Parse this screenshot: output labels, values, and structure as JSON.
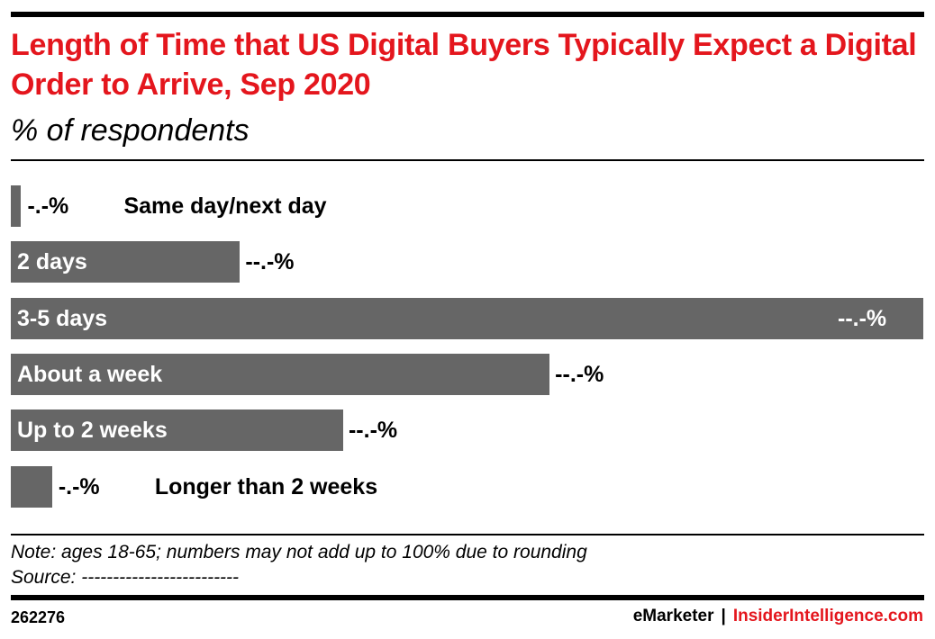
{
  "chart_data": {
    "type": "bar",
    "orientation": "horizontal",
    "title": "Length of Time that US Digital Buyers Typically Expect a Digital Order to Arrive, Sep 2020",
    "subtitle": "% of respondents",
    "categories": [
      "Same day/next day",
      "2 days",
      "3-5 days",
      "About a week",
      "Up to 2 weeks",
      "Longer than 2 weeks"
    ],
    "values": [
      0.5,
      11.1,
      44.2,
      26.1,
      16.1,
      2.0
    ],
    "value_labels": [
      "-.-%",
      "--.-%",
      "--.-%",
      "--.-%",
      "--.-%",
      "-.-%"
    ],
    "xlim": [
      0,
      44.2
    ],
    "grid": false,
    "bar_color": "#666666",
    "title_color": "#e4161d"
  },
  "footer": {
    "note": "Note: ages 18-65; numbers may not add up to 100% due to rounding",
    "source": "Source: -------------------------",
    "chart_id": "262276",
    "brand_emarketer": "eMarketer",
    "brand_sep": "|",
    "brand_ii": "InsiderIntelligence.com"
  }
}
